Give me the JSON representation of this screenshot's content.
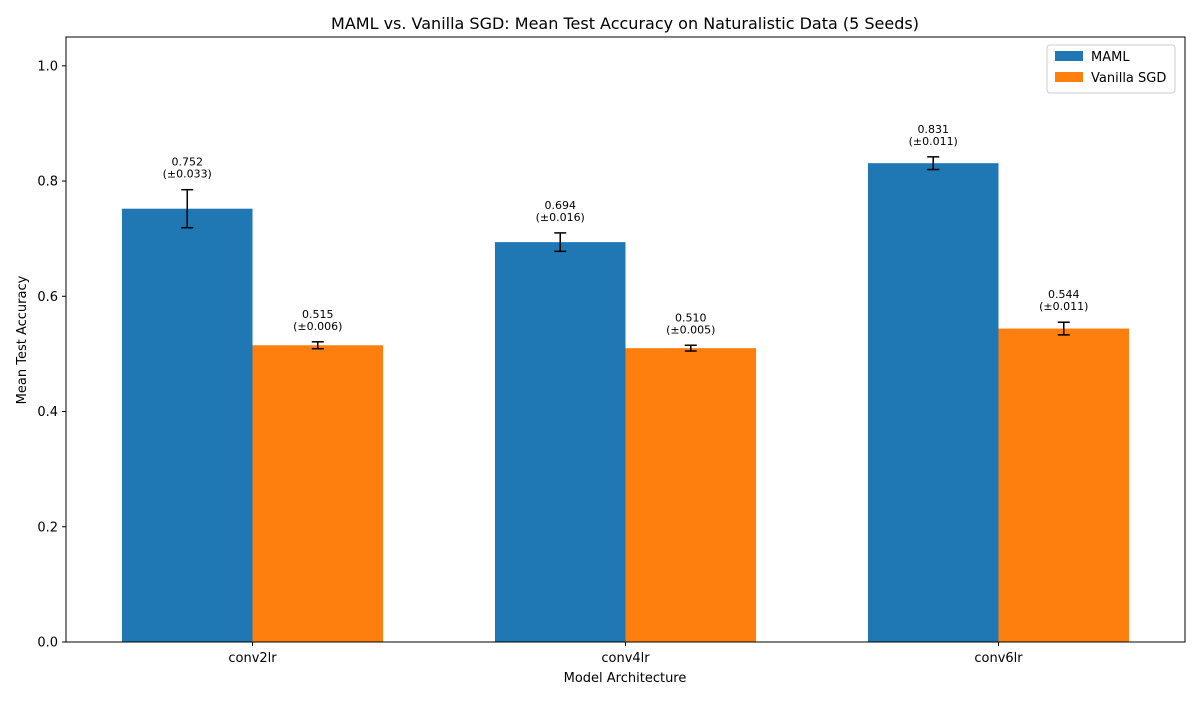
{
  "chart_data": {
    "type": "bar",
    "title": "MAML vs. Vanilla SGD: Mean Test Accuracy on Naturalistic Data (5 Seeds)",
    "xlabel": "Model Architecture",
    "ylabel": "Mean Test Accuracy",
    "categories": [
      "conv2lr",
      "conv4lr",
      "conv6lr"
    ],
    "ylim": [
      0,
      1.05
    ],
    "yticks": [
      0.0,
      0.2,
      0.4,
      0.6,
      0.8,
      1.0
    ],
    "ytick_labels": [
      "0.0",
      "0.2",
      "0.4",
      "0.6",
      "0.8",
      "1.0"
    ],
    "grid": false,
    "legend_position": "top-right",
    "series": [
      {
        "name": "MAML",
        "color": "#1f77b4",
        "values": [
          0.752,
          0.694,
          0.831
        ],
        "errors": [
          0.033,
          0.016,
          0.011
        ],
        "value_labels": [
          "0.752",
          "0.694",
          "0.831"
        ],
        "error_labels": [
          "(±0.033)",
          "(±0.016)",
          "(±0.011)"
        ]
      },
      {
        "name": "Vanilla SGD",
        "color": "#ff7f0e",
        "values": [
          0.515,
          0.51,
          0.544
        ],
        "errors": [
          0.006,
          0.005,
          0.011
        ],
        "value_labels": [
          "0.515",
          "0.510",
          "0.544"
        ],
        "error_labels": [
          "(±0.006)",
          "(±0.005)",
          "(±0.011)"
        ]
      }
    ]
  }
}
